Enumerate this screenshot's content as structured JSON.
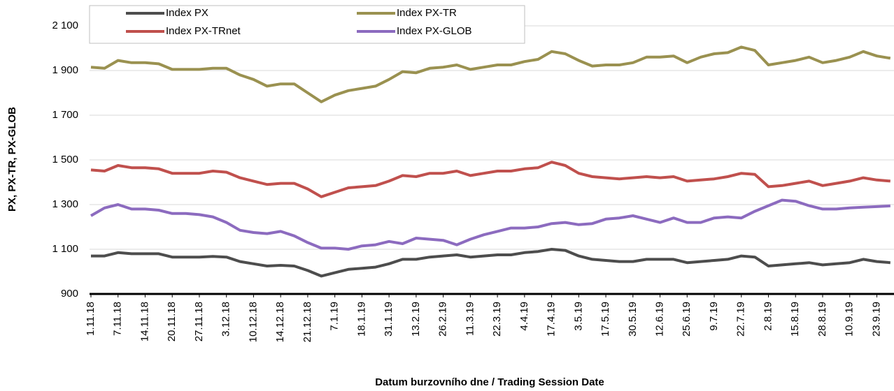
{
  "chart_data": {
    "type": "line",
    "y_label": "PX, PX-TR, PX-GLOB",
    "x_label": "Datum burzovního dne / Trading Session Date",
    "categories": [
      "1.11.18",
      null,
      "7.11.18",
      null,
      "14.11.18",
      null,
      "20.11.18",
      null,
      "27.11.18",
      null,
      "3.12.18",
      null,
      "10.12.18",
      null,
      "14.12.18",
      null,
      "21.12.18",
      null,
      "7.1.19",
      null,
      "18.1.19",
      null,
      "31.1.19",
      null,
      "13.2.19",
      null,
      "26.2.19",
      null,
      "11.3.19",
      null,
      "22.3.19",
      null,
      "4.4.19",
      null,
      "17.4.19",
      null,
      "3.5.19",
      null,
      "17.5.19",
      null,
      "30.5.19",
      null,
      "12.6.19",
      null,
      "25.6.19",
      null,
      "9.7.19",
      null,
      "22.7.19",
      null,
      "2.8.19",
      null,
      "15.8.19",
      null,
      "28.8.19",
      null,
      "10.9.19",
      null,
      "23.9.19",
      null
    ],
    "series": [
      {
        "name": "Index PX",
        "color": "#4d4d4d",
        "values": [
          1070,
          1070,
          1085,
          1080,
          1080,
          1080,
          1065,
          1065,
          1065,
          1068,
          1065,
          1045,
          1035,
          1025,
          1028,
          1025,
          1005,
          980,
          995,
          1010,
          1015,
          1020,
          1035,
          1055,
          1055,
          1065,
          1070,
          1075,
          1065,
          1070,
          1075,
          1075,
          1085,
          1090,
          1100,
          1095,
          1070,
          1055,
          1050,
          1045,
          1045,
          1055,
          1055,
          1055,
          1040,
          1045,
          1050,
          1055,
          1070,
          1065,
          1025,
          1030,
          1035,
          1040,
          1030,
          1035,
          1040,
          1055,
          1045,
          1040
        ]
      },
      {
        "name": "Index PX-TR",
        "color": "#9a9150",
        "values": [
          1915,
          1910,
          1945,
          1935,
          1935,
          1930,
          1905,
          1905,
          1905,
          1910,
          1910,
          1880,
          1860,
          1830,
          1840,
          1840,
          1800,
          1760,
          1790,
          1810,
          1820,
          1830,
          1860,
          1895,
          1890,
          1910,
          1915,
          1925,
          1905,
          1915,
          1925,
          1925,
          1940,
          1950,
          1985,
          1975,
          1945,
          1920,
          1925,
          1925,
          1935,
          1960,
          1960,
          1965,
          1935,
          1960,
          1975,
          1980,
          2005,
          1990,
          1925,
          1935,
          1945,
          1960,
          1935,
          1945,
          1960,
          1985,
          1965,
          1955
        ]
      },
      {
        "name": "Index PX-TRnet",
        "color": "#c0504d",
        "values": [
          1455,
          1450,
          1475,
          1465,
          1465,
          1460,
          1440,
          1440,
          1440,
          1450,
          1445,
          1420,
          1405,
          1390,
          1395,
          1395,
          1370,
          1335,
          1355,
          1375,
          1380,
          1385,
          1405,
          1430,
          1425,
          1440,
          1440,
          1450,
          1430,
          1440,
          1450,
          1450,
          1460,
          1465,
          1490,
          1475,
          1440,
          1425,
          1420,
          1415,
          1420,
          1425,
          1420,
          1425,
          1405,
          1410,
          1415,
          1425,
          1440,
          1435,
          1380,
          1385,
          1395,
          1405,
          1385,
          1395,
          1405,
          1420,
          1410,
          1405
        ]
      },
      {
        "name": "Index PX-GLOB",
        "color": "#8c6bbf",
        "values": [
          1250,
          1285,
          1300,
          1280,
          1280,
          1275,
          1260,
          1260,
          1255,
          1245,
          1220,
          1185,
          1175,
          1170,
          1180,
          1160,
          1130,
          1105,
          1105,
          1100,
          1115,
          1120,
          1135,
          1125,
          1150,
          1145,
          1140,
          1120,
          1145,
          1165,
          1180,
          1195,
          1195,
          1200,
          1215,
          1220,
          1210,
          1215,
          1235,
          1240,
          1250,
          1235,
          1220,
          1240,
          1220,
          1220,
          1240,
          1245,
          1240,
          1270,
          1295,
          1320,
          1315,
          1295,
          1280,
          1280,
          1285,
          1288,
          1291,
          1294
        ]
      }
    ],
    "ylim": [
      900,
      2100
    ],
    "yticks": [
      900,
      {
        "value": 1100,
        "label": "1 100"
      },
      {
        "value": 1300,
        "label": "1 300"
      },
      {
        "value": 1500,
        "label": "1 500"
      },
      {
        "value": 1700,
        "label": "1 700"
      },
      {
        "value": 1900,
        "label": "1 900"
      },
      {
        "value": 2100,
        "label": "2 100"
      }
    ],
    "grid": true
  }
}
